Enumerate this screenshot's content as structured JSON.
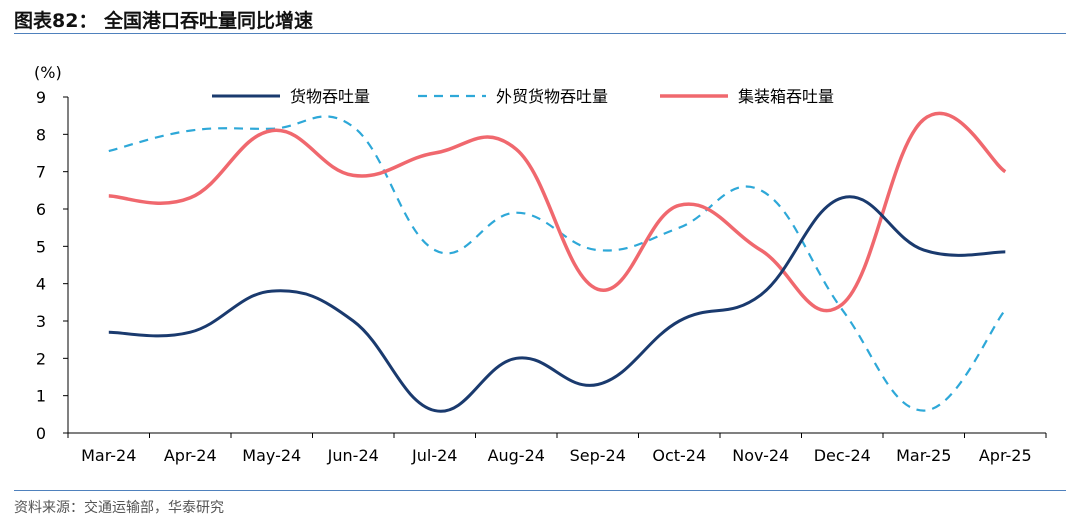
{
  "header": {
    "title": "图表82：  全国港口吞吐量同比增速"
  },
  "footer": {
    "source": "资料来源：交通运输部，华泰研究"
  },
  "colors": {
    "cargo": "#1a3a6e",
    "foreign_trade": "#2ea8d8",
    "container": "#f0686e",
    "rule": "#4f81bd"
  },
  "chart_data": {
    "type": "line",
    "unit_label": "(%)",
    "ylim": [
      0,
      9
    ],
    "yticks": [
      "0",
      "1",
      "2",
      "3",
      "4",
      "5",
      "6",
      "7",
      "8",
      "9"
    ],
    "grid": false,
    "legend_position": "top",
    "categories": [
      "Mar-24",
      "Apr-24",
      "May-24",
      "Jun-24",
      "Jul-24",
      "Aug-24",
      "Sep-24",
      "Oct-24",
      "Nov-24",
      "Dec-24",
      "Mar-25",
      "Apr-25"
    ],
    "series": [
      {
        "name": "货物吞吐量",
        "style": "solid",
        "values": [
          2.7,
          2.7,
          3.8,
          3.0,
          0.6,
          2.0,
          1.3,
          3.0,
          3.7,
          6.3,
          4.9,
          4.85
        ]
      },
      {
        "name": "外贸货物吞吐量",
        "style": "dashed",
        "values": [
          7.55,
          8.1,
          8.15,
          8.2,
          4.9,
          5.9,
          4.9,
          5.5,
          6.5,
          3.3,
          0.6,
          3.3
        ]
      },
      {
        "name": "集装箱吞吐量",
        "style": "solid",
        "values": [
          6.35,
          6.3,
          8.1,
          6.9,
          7.5,
          7.6,
          3.85,
          6.1,
          4.9,
          3.45,
          8.4,
          7.0
        ]
      }
    ]
  }
}
